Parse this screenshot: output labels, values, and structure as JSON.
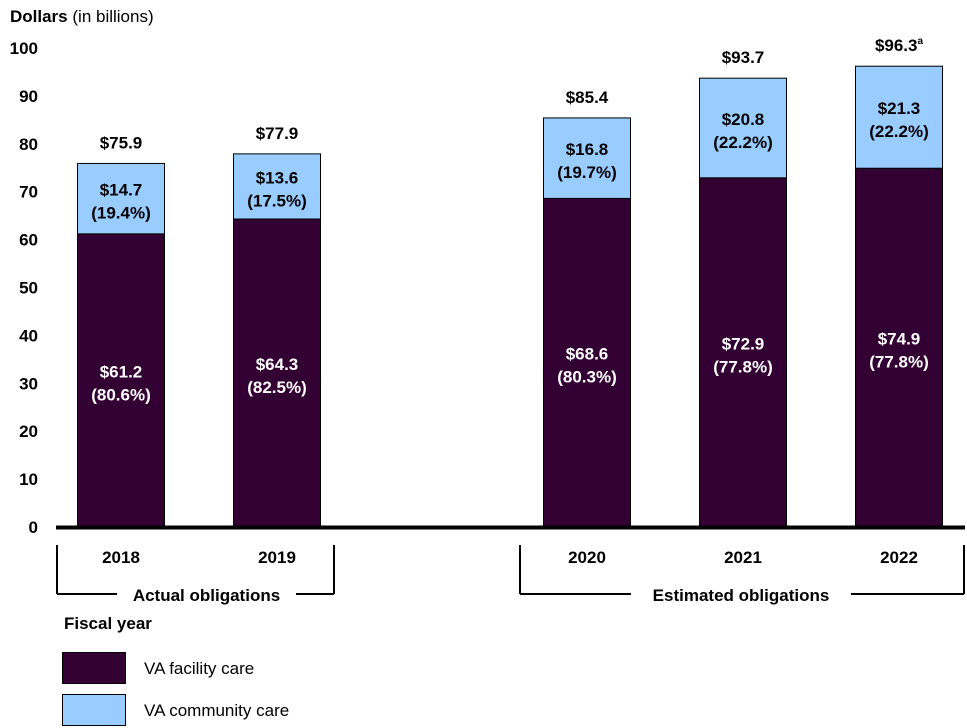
{
  "chart_data": {
    "type": "bar",
    "stacked": true,
    "title": "",
    "ylabel": "Dollars",
    "ylabel_unit": "(in billions)",
    "xlabel": "Fiscal year",
    "ylim": [
      0,
      100
    ],
    "yticks": [
      0,
      10,
      20,
      30,
      40,
      50,
      60,
      70,
      80,
      90,
      100
    ],
    "categories": [
      "2018",
      "2019",
      "2020",
      "2021",
      "2022"
    ],
    "series": [
      {
        "name": "VA facility care",
        "color": "#330033",
        "values": [
          61.2,
          64.3,
          68.6,
          72.9,
          74.9
        ],
        "labels": [
          "$61.2",
          "$64.3",
          "$68.6",
          "$72.9",
          "$74.9"
        ],
        "percent_labels": [
          "(80.6%)",
          "(82.5%)",
          "(80.3%)",
          "(77.8%)",
          "(77.8%)"
        ]
      },
      {
        "name": "VA community care",
        "color": "#99ccff",
        "values": [
          14.7,
          13.6,
          16.8,
          20.8,
          21.3
        ],
        "labels": [
          "$14.7",
          "$13.6",
          "$16.8",
          "$20.8",
          "$21.3"
        ],
        "percent_labels": [
          "(19.4%)",
          "(17.5%)",
          "(19.7%)",
          "(22.2%)",
          "(22.2%)"
        ]
      }
    ],
    "totals": [
      75.9,
      77.9,
      85.4,
      93.7,
      96.3
    ],
    "total_labels": [
      "$75.9",
      "$77.9",
      "$85.4",
      "$93.7",
      "$96.3"
    ],
    "total_footnote": {
      "category": "2022",
      "mark": "a"
    },
    "groups": [
      {
        "label": "Actual obligations",
        "categories": [
          "2018",
          "2019"
        ]
      },
      {
        "label": "Estimated obligations",
        "categories": [
          "2020",
          "2021",
          "2022"
        ]
      }
    ],
    "grid": false,
    "legend_position": "bottom-left"
  }
}
